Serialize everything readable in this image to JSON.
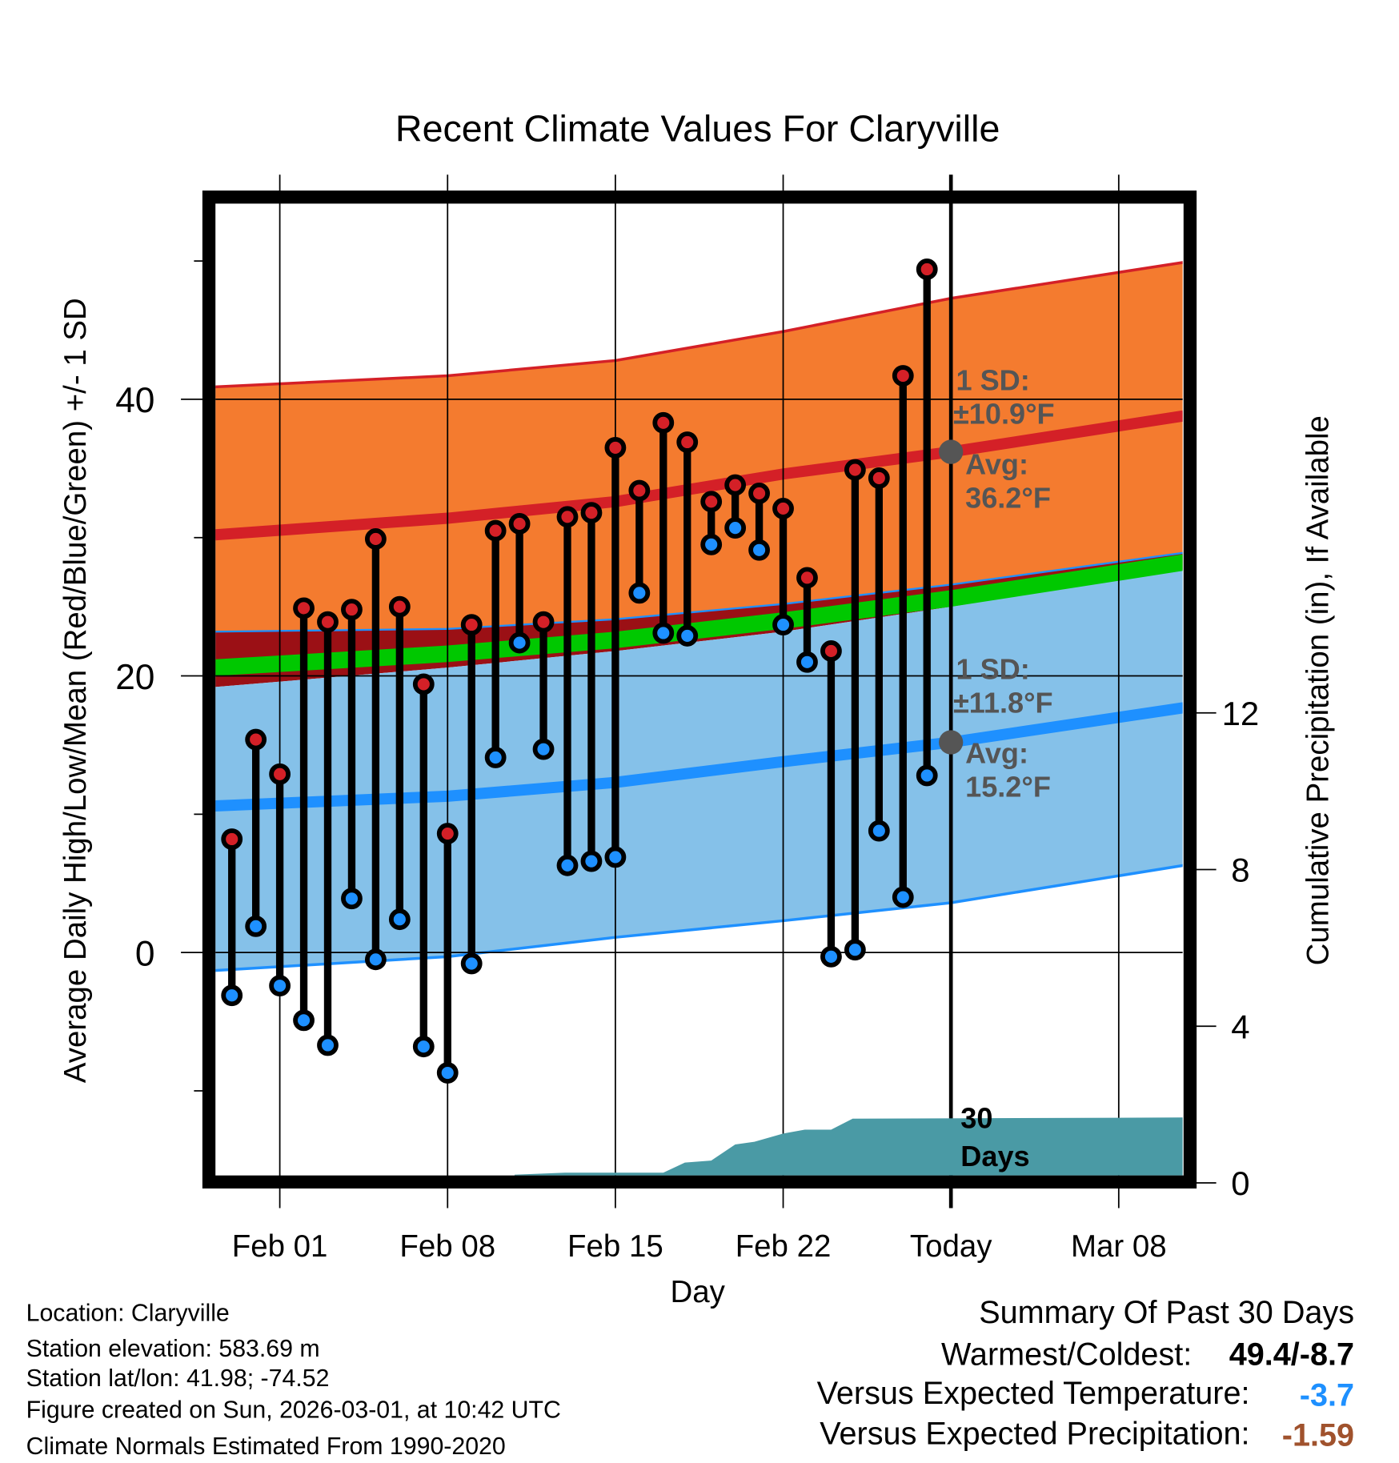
{
  "chart_data": {
    "type": "line",
    "title": "Recent Climate Values For Claryville",
    "xlabel": "Day",
    "ylabel": "Average Daily High/Low/Mean (Red/Blue/Green) +/- 1 SD",
    "y2label": "Cumulative Precipitation (in), If Available",
    "x_day_offset_note": "days relative to Feb 01",
    "xlim": [
      -2.7,
      37.7
    ],
    "ylim": [
      -16.1,
      54.2
    ],
    "y2lim": [
      0,
      23.8
    ],
    "x_ticks": [
      {
        "day": 0,
        "label": "Feb 01"
      },
      {
        "day": 7,
        "label": "Feb 08"
      },
      {
        "day": 14,
        "label": "Feb 15"
      },
      {
        "day": 21,
        "label": "Feb 22"
      },
      {
        "day": 28,
        "label": "Today"
      },
      {
        "day": 35,
        "label": "Mar 08"
      }
    ],
    "y_ticks": [
      {
        "value": 0,
        "label": "0"
      },
      {
        "value": 20,
        "label": "20"
      },
      {
        "value": 40,
        "label": "40"
      }
    ],
    "y_minor_ticks": [
      -10,
      10,
      30,
      50
    ],
    "y2_ticks": [
      {
        "value": 0,
        "label": "0"
      },
      {
        "value": 4,
        "label": "4"
      },
      {
        "value": 8,
        "label": "8"
      },
      {
        "value": 12,
        "label": "12"
      }
    ],
    "daily": {
      "dates": [
        "Jan 30",
        "Jan 31",
        "Feb 01",
        "Feb 02",
        "Feb 03",
        "Feb 04",
        "Feb 05",
        "Feb 06",
        "Feb 07",
        "Feb 08",
        "Feb 09",
        "Feb 10",
        "Feb 11",
        "Feb 12",
        "Feb 13",
        "Feb 14",
        "Feb 15",
        "Feb 16",
        "Feb 17",
        "Feb 18",
        "Feb 19",
        "Feb 20",
        "Feb 21",
        "Feb 22",
        "Feb 23",
        "Feb 24",
        "Feb 25",
        "Feb 26",
        "Feb 27",
        "Feb 28"
      ],
      "high": [
        8.2,
        15.4,
        12.9,
        24.9,
        23.9,
        24.8,
        29.9,
        25.0,
        19.4,
        8.6,
        23.7,
        30.5,
        31.0,
        23.9,
        31.5,
        31.8,
        36.5,
        33.4,
        38.3,
        36.9,
        32.6,
        33.8,
        33.2,
        32.1,
        27.1,
        21.8,
        34.9,
        34.3,
        41.7,
        49.4
      ],
      "low": [
        -3.1,
        1.9,
        -2.4,
        -4.9,
        -6.7,
        3.9,
        -0.5,
        2.4,
        -6.8,
        -8.7,
        -0.8,
        14.1,
        22.4,
        14.7,
        6.3,
        6.6,
        6.9,
        26.0,
        23.1,
        22.9,
        29.5,
        30.7,
        29.1,
        23.7,
        21.0,
        -0.3,
        0.2,
        8.8,
        4.0,
        12.8
      ]
    },
    "normals": {
      "days": [
        -2.7,
        7,
        14,
        21,
        28,
        37.7
      ],
      "high_plus_sd": [
        40.9,
        41.7,
        42.8,
        44.9,
        47.3,
        49.9
      ],
      "high_mean": [
        30.2,
        31.4,
        32.6,
        34.6,
        36.2,
        38.8
      ],
      "high_minus_sd": [
        23.2,
        23.4,
        24.1,
        25.2,
        26.6,
        28.9
      ],
      "daily_mean": [
        20.6,
        21.6,
        22.6,
        24.0,
        25.6,
        28.2
      ],
      "low_plus_sd": [
        19.2,
        20.6,
        21.8,
        23.2,
        25.0,
        27.7
      ],
      "low_mean": [
        10.6,
        11.3,
        12.3,
        13.8,
        15.2,
        17.7
      ],
      "low_minus_sd": [
        -1.3,
        -0.3,
        1.1,
        2.3,
        3.6,
        6.3
      ]
    },
    "precip_cumulative": {
      "days": [
        -2.7,
        9.7,
        9.8,
        11.9,
        16.0,
        16.9,
        18.0,
        19.0,
        19.8,
        21.0,
        21.9,
        23.0,
        23.9,
        37.7
      ],
      "values": [
        0,
        0,
        0.21,
        0.26,
        0.26,
        0.52,
        0.57,
        0.98,
        1.05,
        1.26,
        1.36,
        1.36,
        1.64,
        1.67
      ]
    },
    "annotations": {
      "high_sd": [
        "1 SD:",
        "±10.9°F"
      ],
      "high_avg": [
        "Avg:",
        "36.2°F"
      ],
      "high_avg_value": 36.2,
      "low_sd": [
        "1 SD:",
        "±11.8°F"
      ],
      "low_avg": [
        "Avg:",
        "15.2°F"
      ],
      "low_avg_value": 15.2,
      "window": [
        "30",
        "Days"
      ]
    },
    "colors": {
      "high_band": "#f47b2f",
      "high_line": "#d42027",
      "overlap": "#9b1015",
      "mean": "#00c800",
      "low_band": "#85c1e9",
      "low_line": "#1e90ff",
      "precip": "#4a9aa5",
      "annot": "#555555"
    }
  },
  "footer": {
    "lines": [
      "Location: Claryville",
      "Station elevation: 583.69 m",
      "Station lat/lon: 41.98; -74.52",
      "Figure created on Sun, 2026-03-01, at 10:42 UTC",
      "Climate Normals Estimated From 1990-2020"
    ]
  },
  "summary": {
    "title": "Summary Of Past 30 Days",
    "warmest_coldest_label": "Warmest/Coldest:",
    "warmest_coldest_value": "49.4/-8.7",
    "temp_label": "Versus Expected Temperature:",
    "temp_value": "-3.7",
    "temp_color": "#1e90ff",
    "precip_label": "Versus Expected Precipitation:",
    "precip_value": "-1.59",
    "precip_color": "#a0522d"
  }
}
